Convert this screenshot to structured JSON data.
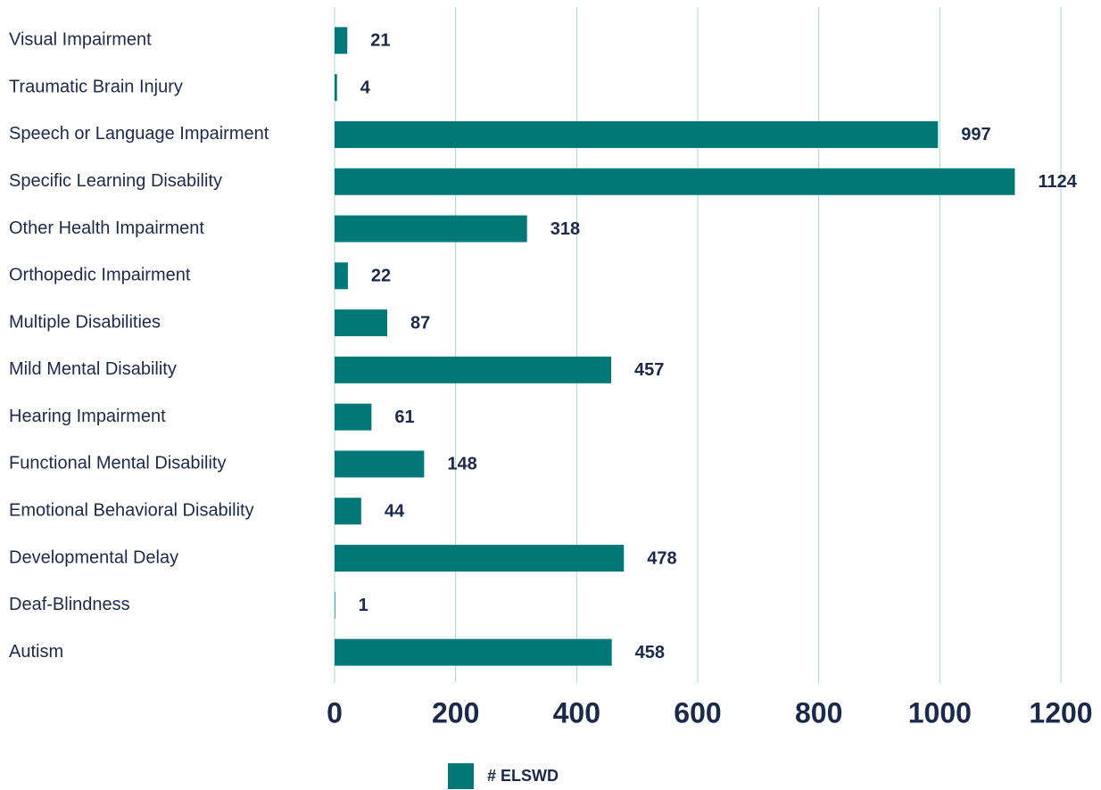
{
  "chart_data": {
    "type": "bar",
    "orientation": "horizontal",
    "categories": [
      "Visual Impairment",
      "Traumatic Brain Injury",
      "Speech or Language Impairment",
      "Specific Learning Disability",
      "Other Health Impairment",
      "Orthopedic Impairment",
      "Multiple Disabilities",
      "Mild Mental Disability",
      "Hearing Impairment",
      "Functional Mental Disability",
      "Emotional Behavioral Disability",
      "Developmental Delay",
      "Deaf-Blindness",
      "Autism"
    ],
    "series": [
      {
        "name": "# ELSWD",
        "color": "#007878",
        "values": [
          21,
          4,
          997,
          1124,
          318,
          22,
          87,
          457,
          61,
          148,
          44,
          478,
          1,
          458
        ]
      }
    ],
    "xlim": [
      0,
      1200
    ],
    "xticks": [
      0,
      200,
      400,
      600,
      800,
      1000,
      1200
    ],
    "grid": true,
    "legend": "bottom"
  }
}
